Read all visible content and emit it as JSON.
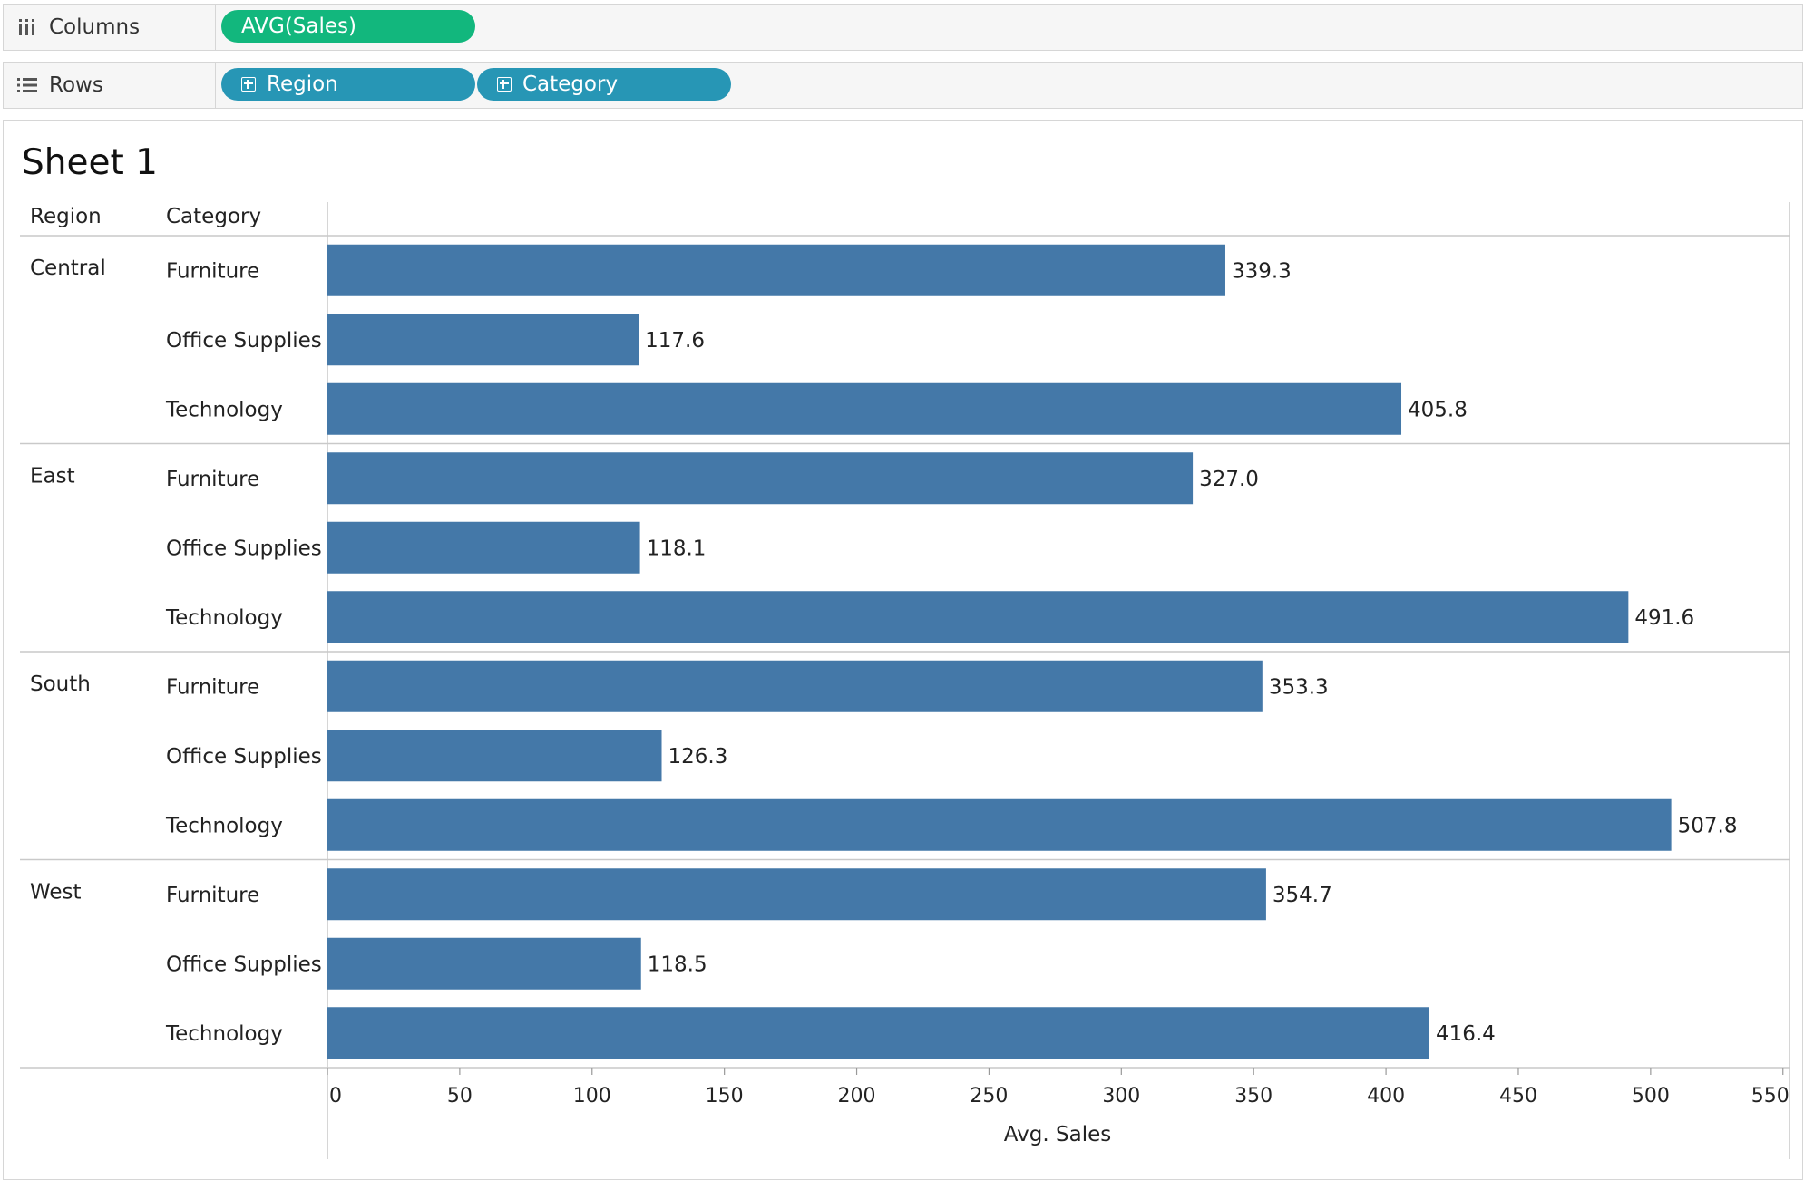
{
  "shelves": {
    "columns": {
      "label": "Columns",
      "pills": [
        "AVG(Sales)"
      ]
    },
    "rows": {
      "label": "Rows",
      "pills": [
        "Region",
        "Category"
      ]
    }
  },
  "sheet": {
    "title": "Sheet 1"
  },
  "headers": {
    "region": "Region",
    "category": "Category"
  },
  "colors": {
    "bar": "#4478a8",
    "pill_measure": "#12b77d",
    "pill_dimension": "#2796b5"
  },
  "chart_data": {
    "type": "bar",
    "orientation": "horizontal",
    "xlabel": "Avg. Sales",
    "xlim": [
      0,
      550
    ],
    "xticks": [
      "0",
      "50",
      "100",
      "150",
      "200",
      "250",
      "300",
      "350",
      "400",
      "450",
      "500",
      "550"
    ],
    "groups": [
      {
        "region": "Central",
        "rows": [
          {
            "category": "Furniture",
            "value": 339.3,
            "label": "339.3"
          },
          {
            "category": "Office Supplies",
            "value": 117.6,
            "label": "117.6"
          },
          {
            "category": "Technology",
            "value": 405.8,
            "label": "405.8"
          }
        ]
      },
      {
        "region": "East",
        "rows": [
          {
            "category": "Furniture",
            "value": 327.0,
            "label": "327.0"
          },
          {
            "category": "Office Supplies",
            "value": 118.1,
            "label": "118.1"
          },
          {
            "category": "Technology",
            "value": 491.6,
            "label": "491.6"
          }
        ]
      },
      {
        "region": "South",
        "rows": [
          {
            "category": "Furniture",
            "value": 353.3,
            "label": "353.3"
          },
          {
            "category": "Office Supplies",
            "value": 126.3,
            "label": "126.3"
          },
          {
            "category": "Technology",
            "value": 507.8,
            "label": "507.8"
          }
        ]
      },
      {
        "region": "West",
        "rows": [
          {
            "category": "Furniture",
            "value": 354.7,
            "label": "354.7"
          },
          {
            "category": "Office Supplies",
            "value": 118.5,
            "label": "118.5"
          },
          {
            "category": "Technology",
            "value": 416.4,
            "label": "416.4"
          }
        ]
      }
    ]
  }
}
